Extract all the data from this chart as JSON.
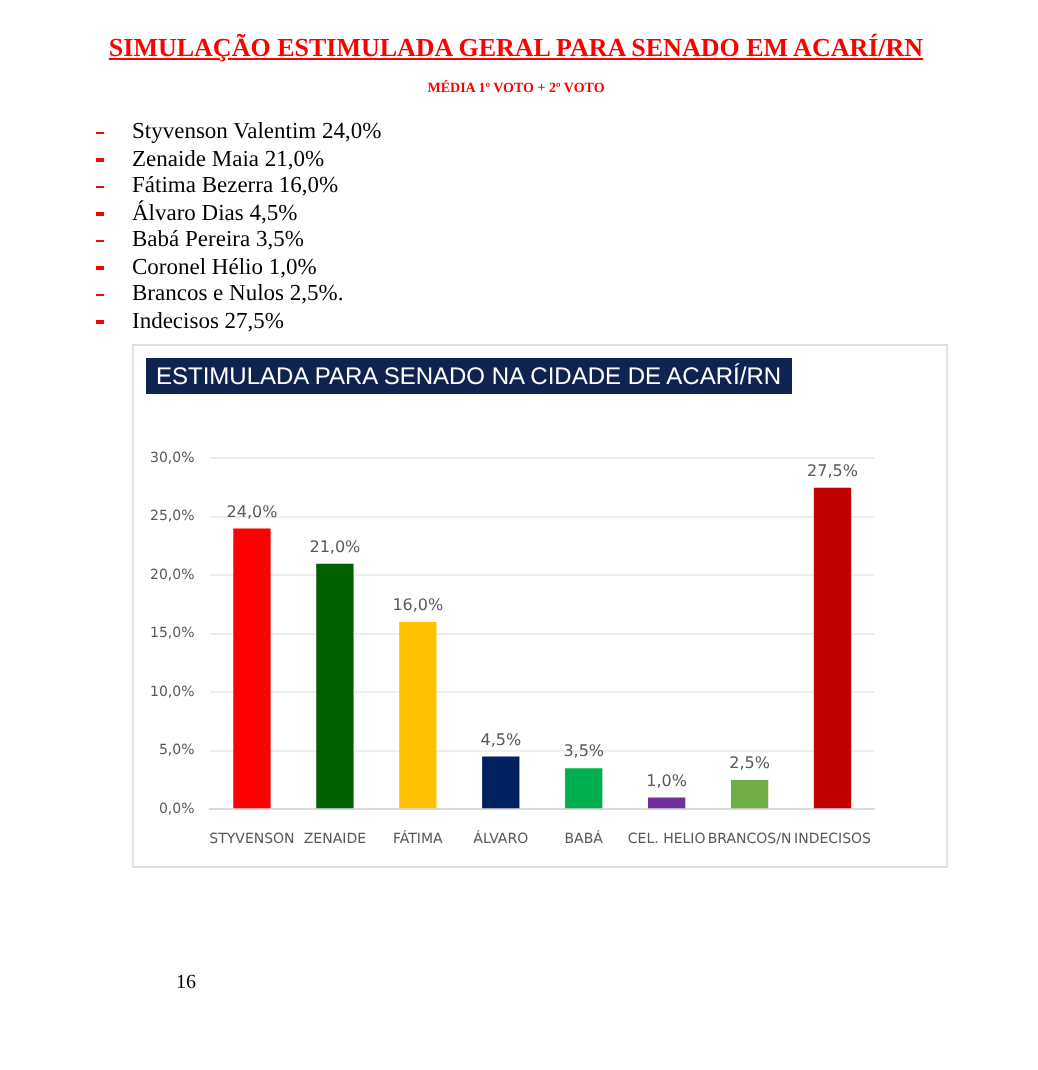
{
  "chart_data": {
    "type": "bar",
    "title": "SIMULAÇÃO ESTIMULADA GERAL PARA SENADO EM ACARÍ/RN",
    "subtitle": "MÉDIA 1º VOTO + 2º VOTO",
    "annotations": [
      "Styvenson Valentim 24,0%",
      "Zenaide Maia 21,0%",
      "Fátima Bezerra 16,0%",
      "Álvaro Dias 4,5%",
      "Babá Pereira 3,5%",
      "Coronel Hélio 1,0%",
      "Brancos e Nulos 2,5%.",
      "Indecisos 27,5%",
      "ESTIMULADA PARA SENADO NA CIDADE DE ACARÍ/RN",
      "16"
    ],
    "categories": [
      "STYVENSON",
      "ZENAIDE",
      "FÁTIMA",
      "ÁLVARO",
      "BABÁ",
      "CEL. HELIO",
      "BRANCOS/N",
      "INDECISOS"
    ],
    "values": [
      24.0,
      21.0,
      16.0,
      4.5,
      3.5,
      1.0,
      2.5,
      27.5
    ],
    "colors": [
      "#ff0000",
      "#006000",
      "#ffc000",
      "#002060",
      "#00b050",
      "#7030a0",
      "#70ad47",
      "#c00000"
    ],
    "value_labels": [
      "24,0%",
      "21,0%",
      "16,0%",
      "4,5%",
      "3,5%",
      "1,0%",
      "2,5%",
      "27,5%"
    ],
    "ylim": [
      0,
      30
    ],
    "yticks": [
      {
        "value": 0,
        "label": "0,0%"
      },
      {
        "value": 5,
        "label": "5,0%"
      },
      {
        "value": 10,
        "label": "10,0%"
      },
      {
        "value": 15,
        "label": "15,0%"
      },
      {
        "value": 20,
        "label": "20,0%"
      },
      {
        "value": 25,
        "label": "25,0%"
      },
      {
        "value": 30,
        "label": "30,0%"
      }
    ],
    "grid": "y",
    "legend": false
  }
}
